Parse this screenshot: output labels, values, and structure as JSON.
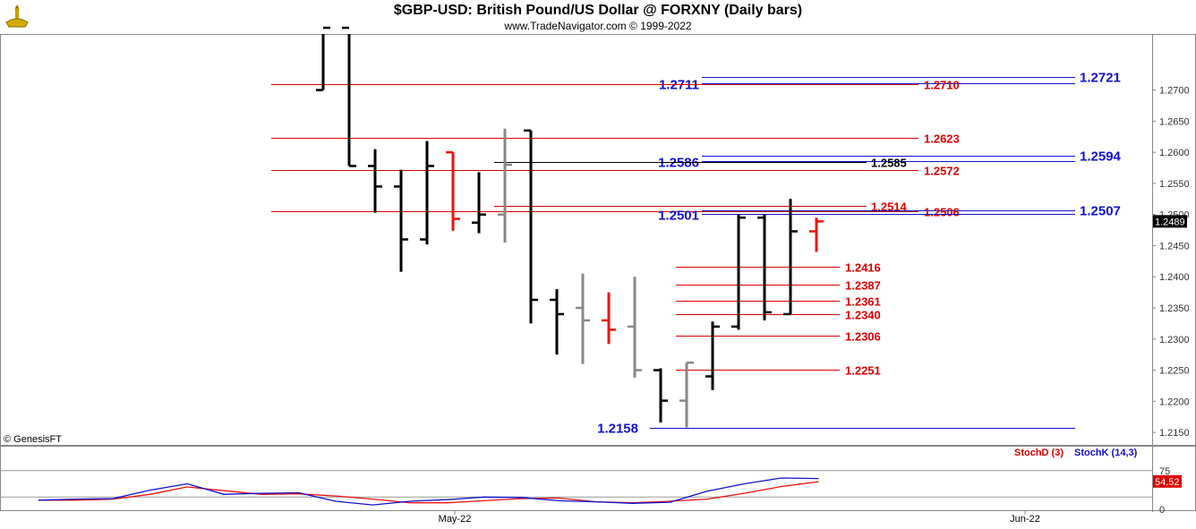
{
  "header": {
    "title": "$GBP-USD:  British Pound/US Dollar @ FORXNY  (Daily bars)",
    "subtitle": "www.TradeNavigator.com © 1999-2022"
  },
  "copyright": "© GenesisFT",
  "colors": {
    "up": "#000000",
    "down_red": "#ee1111",
    "gray": "#888888",
    "blue": "#1111cc",
    "red": "#dd0000"
  },
  "chart_data": [
    {
      "type": "ohlc",
      "ylim": [
        1.213,
        1.279
      ],
      "y_ticks": [
        "1.2700",
        "1.2650",
        "1.2600",
        "1.2550",
        "1.2500",
        "1.2450",
        "1.2400",
        "1.2350",
        "1.2300",
        "1.2250",
        "1.2200",
        "1.2150"
      ],
      "last_price_label": "1.2489",
      "bars": [
        {
          "o": 1.27,
          "h": 1.28,
          "l": 1.27,
          "c": 1.28,
          "color": "black"
        },
        {
          "o": 1.28,
          "h": 1.28,
          "l": 1.2578,
          "c": 1.2578,
          "color": "black"
        },
        {
          "o": 1.2578,
          "h": 1.2605,
          "l": 1.2503,
          "c": 1.2545,
          "color": "black"
        },
        {
          "o": 1.2545,
          "h": 1.2572,
          "l": 1.2408,
          "c": 1.246,
          "color": "black"
        },
        {
          "o": 1.246,
          "h": 1.2618,
          "l": 1.2452,
          "c": 1.2578,
          "color": "black"
        },
        {
          "o": 1.26,
          "h": 1.26,
          "l": 1.2474,
          "c": 1.2493,
          "color": "red"
        },
        {
          "o": 1.2487,
          "h": 1.2568,
          "l": 1.247,
          "c": 1.25,
          "color": "black"
        },
        {
          "o": 1.25,
          "h": 1.2638,
          "l": 1.2455,
          "c": 1.258,
          "color": "gray"
        },
        {
          "o": 1.2635,
          "h": 1.2635,
          "l": 1.2325,
          "c": 1.2363,
          "color": "black"
        },
        {
          "o": 1.2363,
          "h": 1.238,
          "l": 1.2275,
          "c": 1.234,
          "color": "black"
        },
        {
          "o": 1.235,
          "h": 1.2405,
          "l": 1.226,
          "c": 1.233,
          "color": "gray"
        },
        {
          "o": 1.233,
          "h": 1.2375,
          "l": 1.2292,
          "c": 1.2315,
          "color": "red"
        },
        {
          "o": 1.232,
          "h": 1.24,
          "l": 1.2238,
          "c": 1.225,
          "color": "gray"
        },
        {
          "o": 1.225,
          "h": 1.2253,
          "l": 1.2166,
          "c": 1.2201,
          "color": "black"
        },
        {
          "o": 1.2201,
          "h": 1.2262,
          "l": 1.2158,
          "c": 1.2262,
          "color": "gray"
        },
        {
          "o": 1.224,
          "h": 1.2328,
          "l": 1.2218,
          "c": 1.232,
          "color": "black"
        },
        {
          "o": 1.232,
          "h": 1.25,
          "l": 1.2315,
          "c": 1.2495,
          "color": "black"
        },
        {
          "o": 1.2495,
          "h": 1.25,
          "l": 1.233,
          "c": 1.2343,
          "color": "black"
        },
        {
          "o": 1.234,
          "h": 1.2525,
          "l": 1.234,
          "c": 1.2473,
          "color": "black"
        },
        {
          "o": 1.2473,
          "h": 1.2495,
          "l": 1.244,
          "c": 1.2489,
          "color": "red"
        }
      ],
      "levels": [
        {
          "value": 1.2721,
          "label": "1.2721",
          "color": "blue",
          "from": 15,
          "label_pos": "right"
        },
        {
          "value": 1.2711,
          "label": "1.2711",
          "color": "blue",
          "from": 15,
          "label_pos": "left"
        },
        {
          "value": 1.271,
          "label": "1.2710",
          "color": "red",
          "from": -2,
          "label_pos": "mid"
        },
        {
          "value": 1.2623,
          "label": "1.2623",
          "color": "red",
          "from": -2,
          "label_pos": "mid"
        },
        {
          "value": 1.2594,
          "label": "1.2594",
          "color": "blue",
          "from": 15,
          "label_pos": "right"
        },
        {
          "value": 1.2586,
          "label": "1.2586",
          "color": "blue",
          "from": 15,
          "label_pos": "left"
        },
        {
          "value": 1.2585,
          "label": "1.2585",
          "color": "black",
          "from": 7,
          "label_pos": "mid2"
        },
        {
          "value": 1.2572,
          "label": "1.2572",
          "color": "red",
          "from": -2,
          "label_pos": "mid"
        },
        {
          "value": 1.2514,
          "label": "1.2514",
          "color": "red",
          "from": 7,
          "label_pos": "mid2"
        },
        {
          "value": 1.2507,
          "label": "1.2507",
          "color": "blue",
          "from": 15,
          "label_pos": "right"
        },
        {
          "value": 1.2506,
          "label": "1.2506",
          "color": "red",
          "from": -2,
          "label_pos": "mid"
        },
        {
          "value": 1.2501,
          "label": "1.2501",
          "color": "blue",
          "from": 15,
          "label_pos": "left"
        },
        {
          "value": 1.2416,
          "label": "1.2416",
          "color": "red",
          "from": 14,
          "label_pos": "short"
        },
        {
          "value": 1.2387,
          "label": "1.2387",
          "color": "red",
          "from": 14,
          "label_pos": "short"
        },
        {
          "value": 1.2361,
          "label": "1.2361",
          "color": "red",
          "from": 14,
          "label_pos": "short"
        },
        {
          "value": 1.234,
          "label": "1.2340",
          "color": "red",
          "from": 14,
          "label_pos": "short"
        },
        {
          "value": 1.2306,
          "label": "1.2306",
          "color": "red",
          "from": 14,
          "label_pos": "short"
        },
        {
          "value": 1.2251,
          "label": "1.2251",
          "color": "red",
          "from": 14,
          "label_pos": "short"
        },
        {
          "value": 1.2158,
          "label": "1.2158",
          "color": "blue",
          "from": 13,
          "label_pos": "leftlow"
        }
      ]
    },
    {
      "type": "line",
      "title": "Stochastic",
      "ylim": [
        0,
        100
      ],
      "y_ticks": [
        "75",
        "0"
      ],
      "last_value_label": "54.52",
      "x_labels": [
        "May-22",
        "Jun-22"
      ],
      "series": [
        {
          "name": "StochD (3)",
          "color": "red",
          "values": [
            19,
            19,
            21,
            30,
            44,
            37,
            30,
            31,
            27,
            21,
            14,
            14,
            18,
            22,
            23,
            16,
            14,
            17,
            21,
            32,
            45,
            54
          ]
        },
        {
          "name": "StochK (14,3)",
          "color": "blue",
          "values": [
            19,
            21,
            22,
            38,
            50,
            30,
            32,
            33,
            17,
            10,
            17,
            20,
            25,
            24,
            18,
            16,
            13,
            15,
            36,
            50,
            61,
            60
          ]
        }
      ]
    }
  ]
}
